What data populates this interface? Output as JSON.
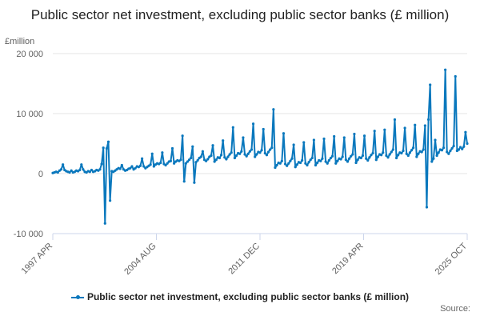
{
  "chart_data": {
    "type": "line",
    "title": "Public sector net investment, excluding public sector banks (£ million)",
    "ylabel": "£million",
    "xlabel": "",
    "ylim": [
      -10000,
      20000
    ],
    "yticks": [
      "-10 000",
      "0",
      "10 000",
      "20 000"
    ],
    "yticks_values": [
      -10000,
      0,
      10000,
      20000
    ],
    "xticks": [
      "1997 APR",
      "2004 AUG",
      "2011 DEC",
      "2019 APR",
      "2025 OCT"
    ],
    "grid": true,
    "legend_position": "bottom",
    "color": "#0a78bd",
    "x_start": "1997 APR",
    "x_end": "2025 OCT",
    "series": [
      {
        "name": "Public sector net investment, excluding public sector banks (£ million)",
        "values": [
          100,
          200,
          300,
          200,
          500,
          700,
          1500,
          600,
          400,
          300,
          200,
          500,
          200,
          300,
          500,
          400,
          600,
          1500,
          700,
          300,
          200,
          400,
          300,
          600,
          300,
          400,
          600,
          500,
          700,
          1600,
          4300,
          -8300,
          4200,
          5300,
          -4500,
          400,
          300,
          500,
          700,
          900,
          800,
          1400,
          700,
          500,
          600,
          800,
          900,
          1200,
          700,
          900,
          1200,
          1100,
          1300,
          2500,
          1200,
          900,
          1100,
          1300,
          1500,
          3300,
          1200,
          1500,
          1700,
          1600,
          1800,
          3500,
          1600,
          1400,
          1700,
          2000,
          2100,
          4200,
          1700,
          2000,
          2200,
          2100,
          2300,
          6300,
          -1300,
          1700,
          2000,
          2300,
          2600,
          4500,
          -1500,
          1900,
          2200,
          2600,
          2800,
          3700,
          2300,
          2100,
          2400,
          2800,
          3000,
          4700,
          2000,
          2300,
          2700,
          2600,
          3100,
          5500,
          2700,
          2400,
          2800,
          3200,
          3500,
          7700,
          2600,
          3000,
          3400,
          3300,
          3700,
          6000,
          3200,
          2900,
          3300,
          3700,
          4000,
          8300,
          2800,
          3200,
          3600,
          3500,
          3900,
          7400,
          3400,
          3100,
          3600,
          4000,
          4300,
          10700,
          1000,
          1400,
          1800,
          1700,
          2100,
          6700,
          1600,
          1300,
          1700,
          2100,
          2500,
          4800,
          1100,
          1500,
          1900,
          1800,
          2200,
          5200,
          1700,
          1400,
          1900,
          2300,
          2600,
          5600,
          1400,
          1800,
          2200,
          2100,
          2500,
          5800,
          2000,
          1700,
          2200,
          2600,
          2900,
          6200,
          1700,
          2100,
          2500,
          2400,
          2800,
          6000,
          2300,
          2000,
          2500,
          2900,
          3200,
          6600,
          1800,
          2300,
          2700,
          2600,
          3000,
          6300,
          2500,
          2200,
          2700,
          3100,
          3400,
          7100,
          2300,
          2800,
          3200,
          3100,
          3500,
          7300,
          3000,
          2700,
          3200,
          3600,
          4000,
          9000,
          2600,
          3100,
          3500,
          3400,
          3800,
          7600,
          3300,
          3000,
          3500,
          3900,
          4300,
          8100,
          2800,
          3300,
          3700,
          3600,
          4000,
          8000,
          -5600,
          9000,
          14800,
          2000,
          2500,
          5600,
          3000,
          3500,
          4000,
          3900,
          4300,
          17300,
          3600,
          3300,
          3800,
          4200,
          4600,
          16200,
          3800,
          4000,
          4400,
          4100,
          4500,
          6900,
          5000
        ]
      }
    ]
  },
  "legend": {
    "label": "Public sector net investment, excluding public sector banks (£ million)"
  },
  "credit": "Source:"
}
